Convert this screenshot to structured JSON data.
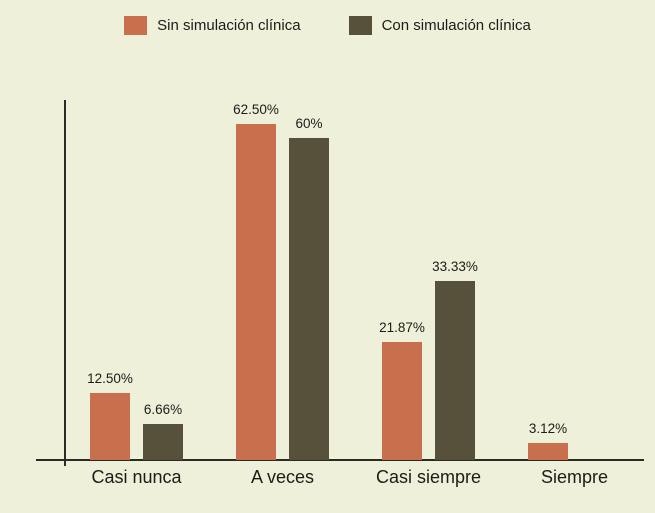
{
  "chart_data": {
    "type": "bar",
    "title": "",
    "xlabel": "",
    "ylabel": "",
    "categories": [
      "Casi nunca",
      "A veces",
      "Casi siempre",
      "Siempre"
    ],
    "series": [
      {
        "name": "Sin simulación clínica",
        "color": "#c8704d",
        "values": [
          12.5,
          62.5,
          21.87,
          3.12
        ],
        "value_labels": [
          "12.50%",
          "62.50%",
          "21.87%",
          "3.12%"
        ]
      },
      {
        "name": "Con simulación clínica",
        "color": "#57503a",
        "values": [
          6.66,
          60,
          33.33,
          null
        ],
        "value_labels": [
          "6.66%",
          "60%",
          "33.33%",
          null
        ]
      }
    ],
    "ylim": [
      0,
      67
    ],
    "y_axis_ticks": [],
    "grid": false,
    "legend_position": "top",
    "background_color": "#eef0da",
    "axis_color": "#2b2b24",
    "text_color": "#1c1c18"
  }
}
